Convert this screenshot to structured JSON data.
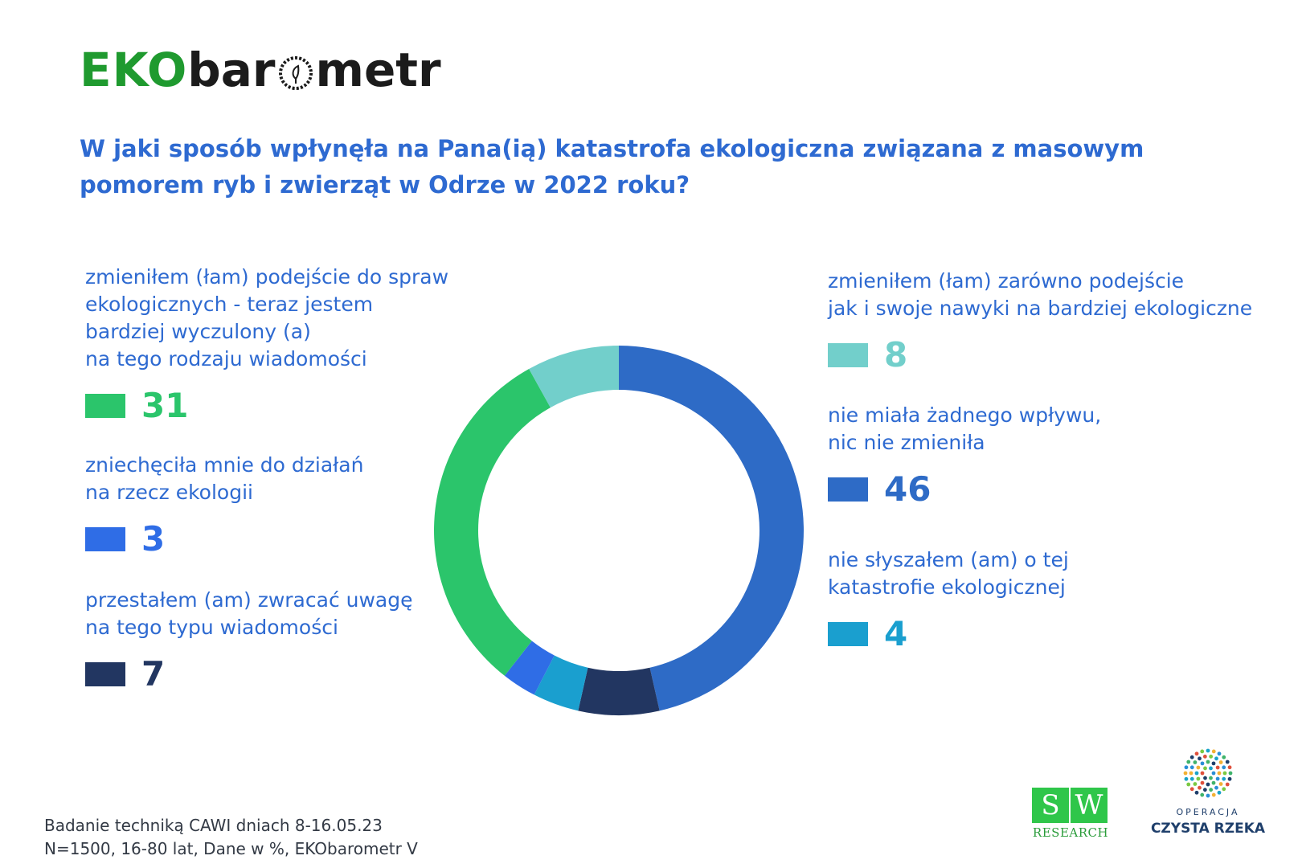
{
  "logo": {
    "eko": "EKO",
    "baro": "bar",
    "metr": "metr"
  },
  "question": "W  jaki sposób wpłynęła na Pana(ią) katastrofa ekologiczna związana z masowym pomorem ryb i zwierząt w Odrze w 2022 roku?",
  "items": [
    {
      "label": "zmieniłem (łam) podejście do spraw\nekologicznych - teraz jestem\nbardziej wyczulony (a)\nna tego rodzaju wiadomości",
      "value": "31",
      "color": "#2bc56b"
    },
    {
      "label": "zniechęciła mnie do działań\nna rzecz ekologii",
      "value": "3",
      "color": "#2f6de6"
    },
    {
      "label": "przestałem (am) zwracać uwagę\nna tego typu wiadomości",
      "value": "7",
      "color": "#223661"
    },
    {
      "label": "zmieniłem (łam) zarówno podejście\njak i swoje nawyki na bardziej ekologiczne",
      "value": "8",
      "color": "#72cfcb"
    },
    {
      "label": "nie miała żadnego wpływu,\nnic nie zmieniła",
      "value": "46",
      "color": "#2e6bc6"
    },
    {
      "label": "nie słyszałem (am) o tej\nkatastrofie ekologicznej",
      "value": "4",
      "color": "#1a9fcf"
    }
  ],
  "chart_data": {
    "type": "pie",
    "title": "",
    "labels": [
      "nie miała żadnego wpływu, nic nie zmieniła",
      "przestałem (am) zwracać uwagę na tego typu wiadomości",
      "nie słyszałem (am) o tej katastrofie ekologicznej",
      "zniechęciła mnie do działań na rzecz ekologii",
      "zmieniłem (łam) podejście do spraw ekologicznych - teraz jestem bardziej wyczulony (a) na tego rodzaju wiadomości",
      "zmieniłem (łam) zarówno podejście jak i swoje nawyki na bardziej ekologiczne"
    ],
    "values": [
      46,
      7,
      4,
      3,
      31,
      8
    ],
    "colors": [
      "#2e6bc6",
      "#223661",
      "#1a9fcf",
      "#2f6de6",
      "#2bc56b",
      "#72cfcb"
    ],
    "donut": true,
    "unit": "%"
  },
  "footnote": "Badanie techniką CAWI dniach 8-16.05.23\nN=1500, 16-80 lat, Dane w %, EKObarometr V",
  "partners": {
    "sw_left": "S",
    "sw_right": "W",
    "sw_text": "RESEARCH",
    "cr_sub": "OPERACJA",
    "cr_title": "CZYSTA RZEKA"
  }
}
